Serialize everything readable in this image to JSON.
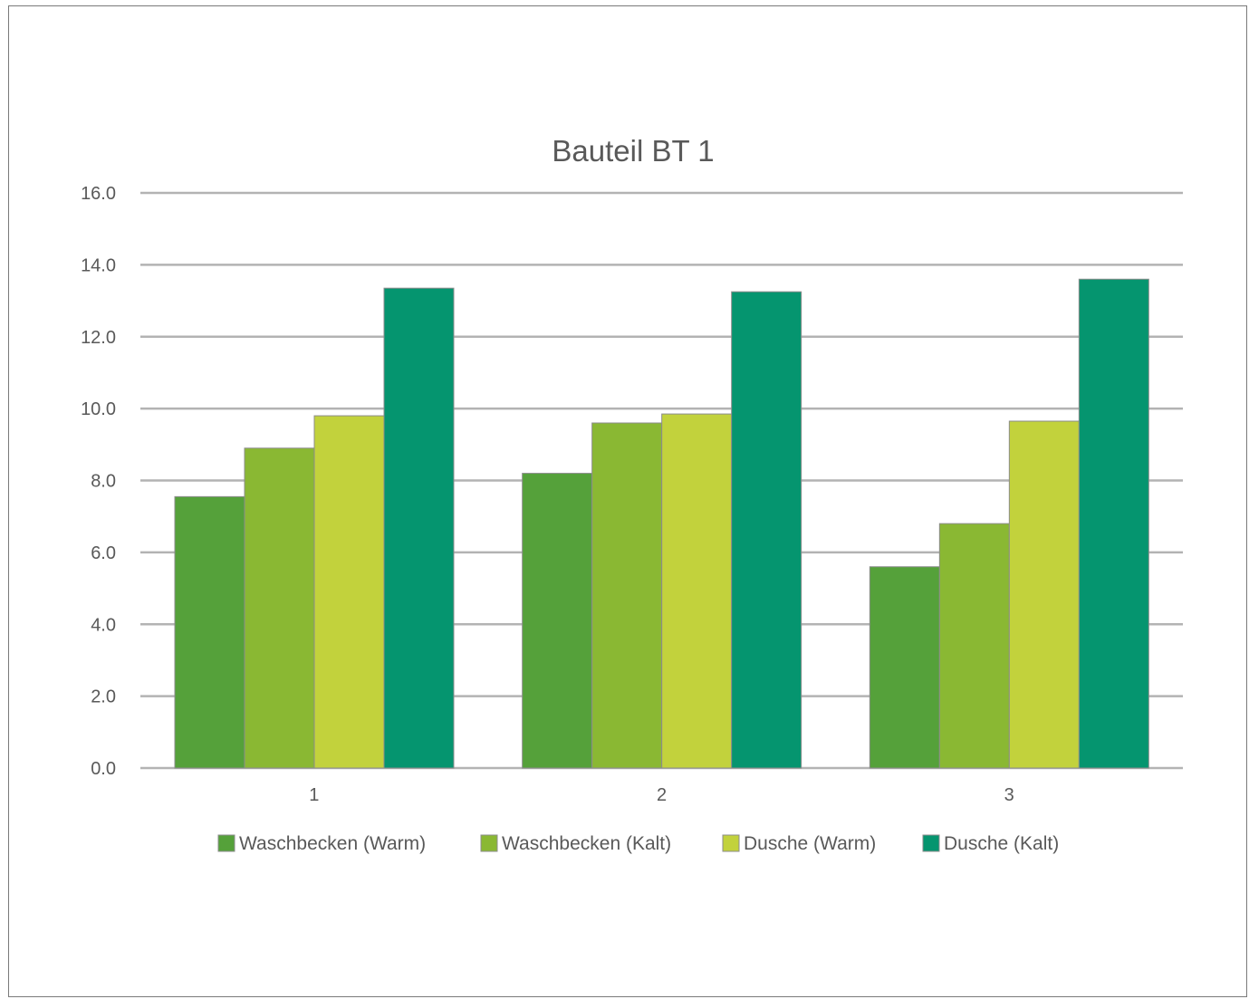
{
  "chart_data": {
    "type": "bar",
    "title": "Bauteil BT 1",
    "xlabel": "",
    "ylabel": "",
    "categories": [
      "1",
      "2",
      "3"
    ],
    "ylim": [
      0,
      16
    ],
    "yticks": [
      "0.0",
      "2.0",
      "4.0",
      "6.0",
      "8.0",
      "10.0",
      "12.0",
      "14.0",
      "16.0"
    ],
    "grid": true,
    "legend_position": "bottom",
    "series": [
      {
        "name": "Waschbecken (Warm)",
        "color": "#55a13a",
        "values": [
          7.55,
          8.2,
          5.6
        ]
      },
      {
        "name": "Waschbecken (Kalt)",
        "color": "#8ab833",
        "values": [
          8.9,
          9.6,
          6.8
        ]
      },
      {
        "name": "Dusche (Warm)",
        "color": "#c2d23c",
        "values": [
          9.8,
          9.85,
          9.65
        ]
      },
      {
        "name": "Dusche (Kalt)",
        "color": "#05956f",
        "values": [
          13.35,
          13.25,
          13.6
        ]
      }
    ]
  }
}
